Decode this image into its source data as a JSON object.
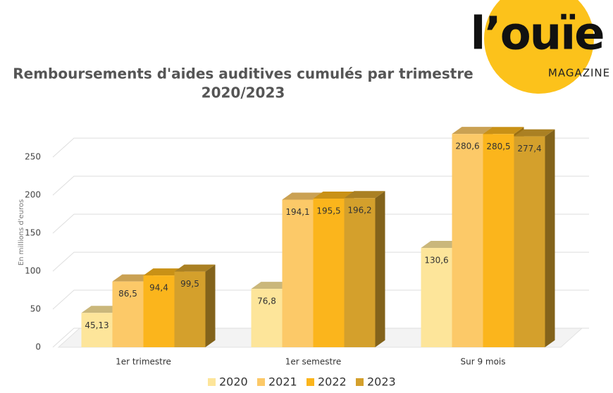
{
  "chart_data": {
    "type": "bar3d",
    "title": "Remboursements d'aides auditives cumulés par trimestre",
    "subtitle": "2020/2023",
    "y_label": "En millions d'euros",
    "logo": {
      "name": "l’ouïe",
      "tagline": "MAGAZINE"
    },
    "categories": [
      "1er trimestre",
      "1er semestre",
      "Sur 9 mois"
    ],
    "series": [
      {
        "name": "2020",
        "color": "#fde59a",
        "values": [
          45.13,
          76.8,
          130.6
        ],
        "value_labels": [
          "45,13",
          "76,8",
          "130,6"
        ]
      },
      {
        "name": "2021",
        "color": "#fcc968",
        "values": [
          86.5,
          194.1,
          280.6
        ],
        "value_labels": [
          "86,5",
          "194,1",
          "280,6"
        ]
      },
      {
        "name": "2022",
        "color": "#fbb51c",
        "values": [
          94.4,
          195.5,
          280.5
        ],
        "value_labels": [
          "94,4",
          "195,5",
          "280,5"
        ]
      },
      {
        "name": "2023",
        "color": "#d4a02c",
        "values": [
          99.5,
          196.2,
          277.4
        ],
        "value_labels": [
          "99,5",
          "196,2",
          "277,4"
        ]
      }
    ],
    "ylim": [
      0,
      290
    ],
    "yticks": [
      0,
      50,
      100,
      150,
      200,
      250
    ],
    "grid": true,
    "legend": "bottom"
  }
}
